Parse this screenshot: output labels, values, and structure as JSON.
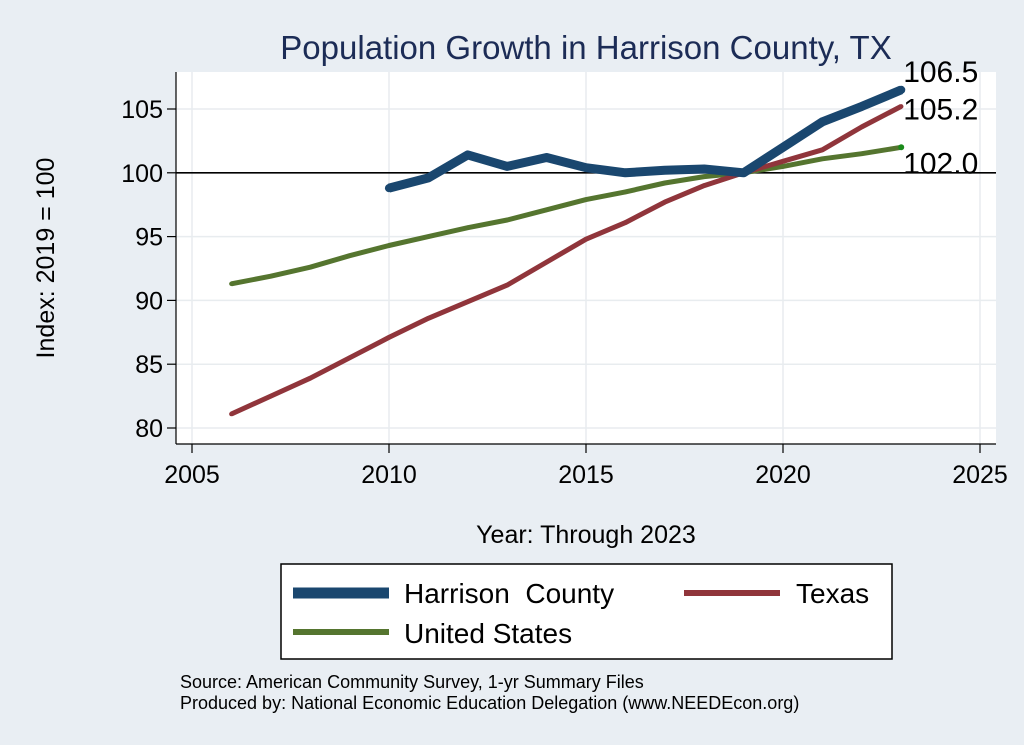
{
  "chart_data": {
    "type": "line",
    "title": "Population Growth in Harrison County, TX",
    "xlabel": "Year: Through 2023",
    "ylabel": "Index: 2019 = 100",
    "xlim": [
      2005,
      2025
    ],
    "ylim": [
      79,
      107.5
    ],
    "xticks": [
      2005,
      2010,
      2015,
      2020,
      2025
    ],
    "yticks": [
      80,
      85,
      90,
      95,
      100,
      105
    ],
    "reference_line": 100,
    "grid": true,
    "legend_position": "bottom",
    "series": [
      {
        "name": "Harrison  County",
        "color": "#1a476f",
        "x": [
          2010,
          2011,
          2012,
          2013,
          2014,
          2015,
          2016,
          2017,
          2018,
          2019,
          2020,
          2021,
          2022,
          2023
        ],
        "values": [
          98.8,
          99.6,
          101.4,
          100.5,
          101.2,
          100.4,
          100.0,
          100.2,
          100.3,
          100.0,
          102.0,
          104.0,
          105.2,
          106.5
        ],
        "end_label": "106.5"
      },
      {
        "name": "Texas",
        "color": "#90353b",
        "x": [
          2006,
          2007,
          2008,
          2009,
          2010,
          2011,
          2012,
          2013,
          2014,
          2015,
          2016,
          2017,
          2018,
          2019,
          2020,
          2021,
          2022,
          2023
        ],
        "values": [
          81.1,
          82.5,
          83.9,
          85.5,
          87.1,
          88.6,
          89.9,
          91.2,
          93.0,
          94.8,
          96.1,
          97.7,
          99.0,
          100.0,
          100.9,
          101.8,
          103.6,
          105.2
        ],
        "end_label": "105.2"
      },
      {
        "name": "United States",
        "color": "#55752f",
        "x": [
          2006,
          2007,
          2008,
          2009,
          2010,
          2011,
          2012,
          2013,
          2014,
          2015,
          2016,
          2017,
          2018,
          2019,
          2020,
          2021,
          2022,
          2023
        ],
        "values": [
          91.3,
          91.9,
          92.6,
          93.5,
          94.3,
          95.0,
          95.7,
          96.3,
          97.1,
          97.9,
          98.5,
          99.2,
          99.7,
          100.0,
          100.5,
          101.1,
          101.5,
          102.0
        ],
        "end_label": "102.0"
      }
    ]
  },
  "source_line_1": "Source: American Community Survey, 1-yr Summary Files",
  "source_line_2": "Produced by: National Economic Education Delegation (www.NEEDEcon.org)"
}
